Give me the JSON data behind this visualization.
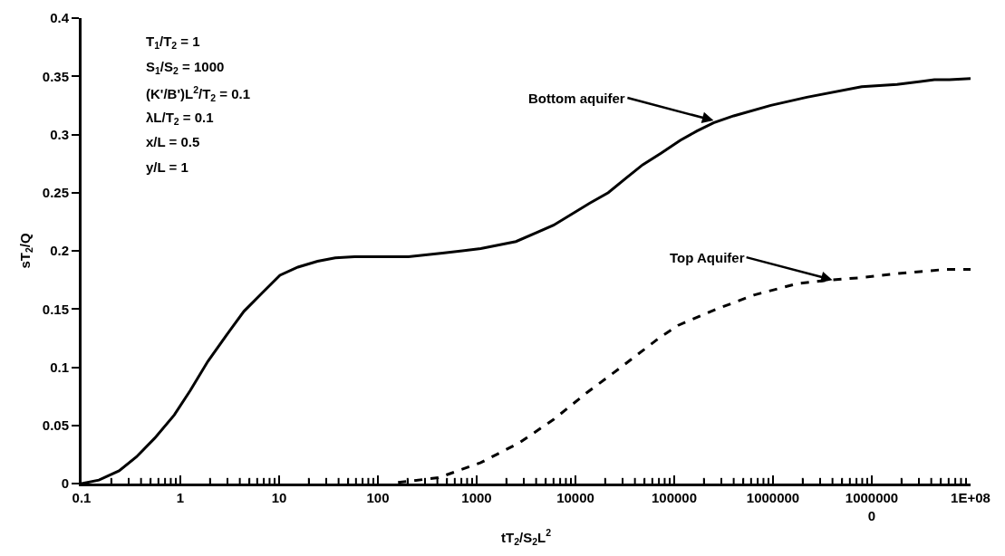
{
  "chart_data": {
    "type": "line",
    "xlabel": "tT$_{2}$/S$_{2}$L$^{2}$",
    "ylabel": "sT$_{2}$/Q",
    "log": "x",
    "xlim": [
      0.1,
      100000000
    ],
    "xticks": [
      0.1,
      1,
      10,
      100,
      1000,
      10000,
      100000,
      1000000,
      {
        "value": 10000000,
        "label": "1000000\n0"
      },
      {
        "value": 100000000,
        "label": "1E+08"
      }
    ],
    "ylim": [
      0,
      0.4
    ],
    "yticks": [
      0,
      0.05,
      0.1,
      0.15,
      0.2,
      0.25,
      0.3,
      0.35,
      0.4
    ],
    "series": [
      {
        "color": "#000000",
        "line_style": "solid",
        "x": [
          0.1,
          0.15,
          0.24,
          0.36,
          0.55,
          0.87,
          1.26,
          1.9,
          2.9,
          4.4,
          6.6,
          10.2,
          15.5,
          24.5,
          37,
          58,
          204,
          450,
          1100,
          2500,
          6000,
          14000,
          21500,
          33000,
          48000,
          74000,
          115000,
          170000,
          250000,
          400000,
          950000,
          2200000,
          7900000,
          18000000,
          43000000,
          61000000,
          100000000
        ],
        "values": [
          0,
          0.003,
          0.011,
          0.023,
          0.039,
          0.059,
          0.08,
          0.105,
          0.127,
          0.148,
          0.163,
          0.179,
          0.186,
          0.191,
          0.194,
          0.195,
          0.195,
          0.198,
          0.202,
          0.208,
          0.222,
          0.241,
          0.25,
          0.263,
          0.274,
          0.284,
          0.295,
          0.303,
          0.31,
          0.316,
          0.325,
          0.332,
          0.341,
          0.343,
          0.347,
          0.347,
          0.348
        ]
      },
      {
        "color": "#000000",
        "line_style": "dashed",
        "x": [
          160,
          410,
          1100,
          2700,
          6000,
          13000,
          30000,
          70000,
          110000,
          270000,
          640000,
          1800000,
          3900000,
          7900000,
          21000000,
          55000000,
          100000000
        ],
        "values": [
          0.001,
          0.005,
          0.018,
          0.035,
          0.055,
          0.078,
          0.101,
          0.125,
          0.136,
          0.15,
          0.162,
          0.172,
          0.175,
          0.177,
          0.181,
          0.184,
          0.184
        ]
      }
    ],
    "annotations": [
      {
        "text": "Bottom aquifer",
        "x": 250000,
        "y": 0.312
      },
      {
        "text": "Top Aquifer",
        "x": 4000000,
        "y": 0.175
      },
      "T$_{1}$/T$_{2}$ = 1",
      "S$_{1}$/S$_{2}$ = 1000",
      "(K'/B')L$^{2}$/T$_{2}$ = 0.1",
      "λL/T$_{2}$ = 0.1",
      "x/L = 0.5",
      "y/L = 1"
    ]
  }
}
